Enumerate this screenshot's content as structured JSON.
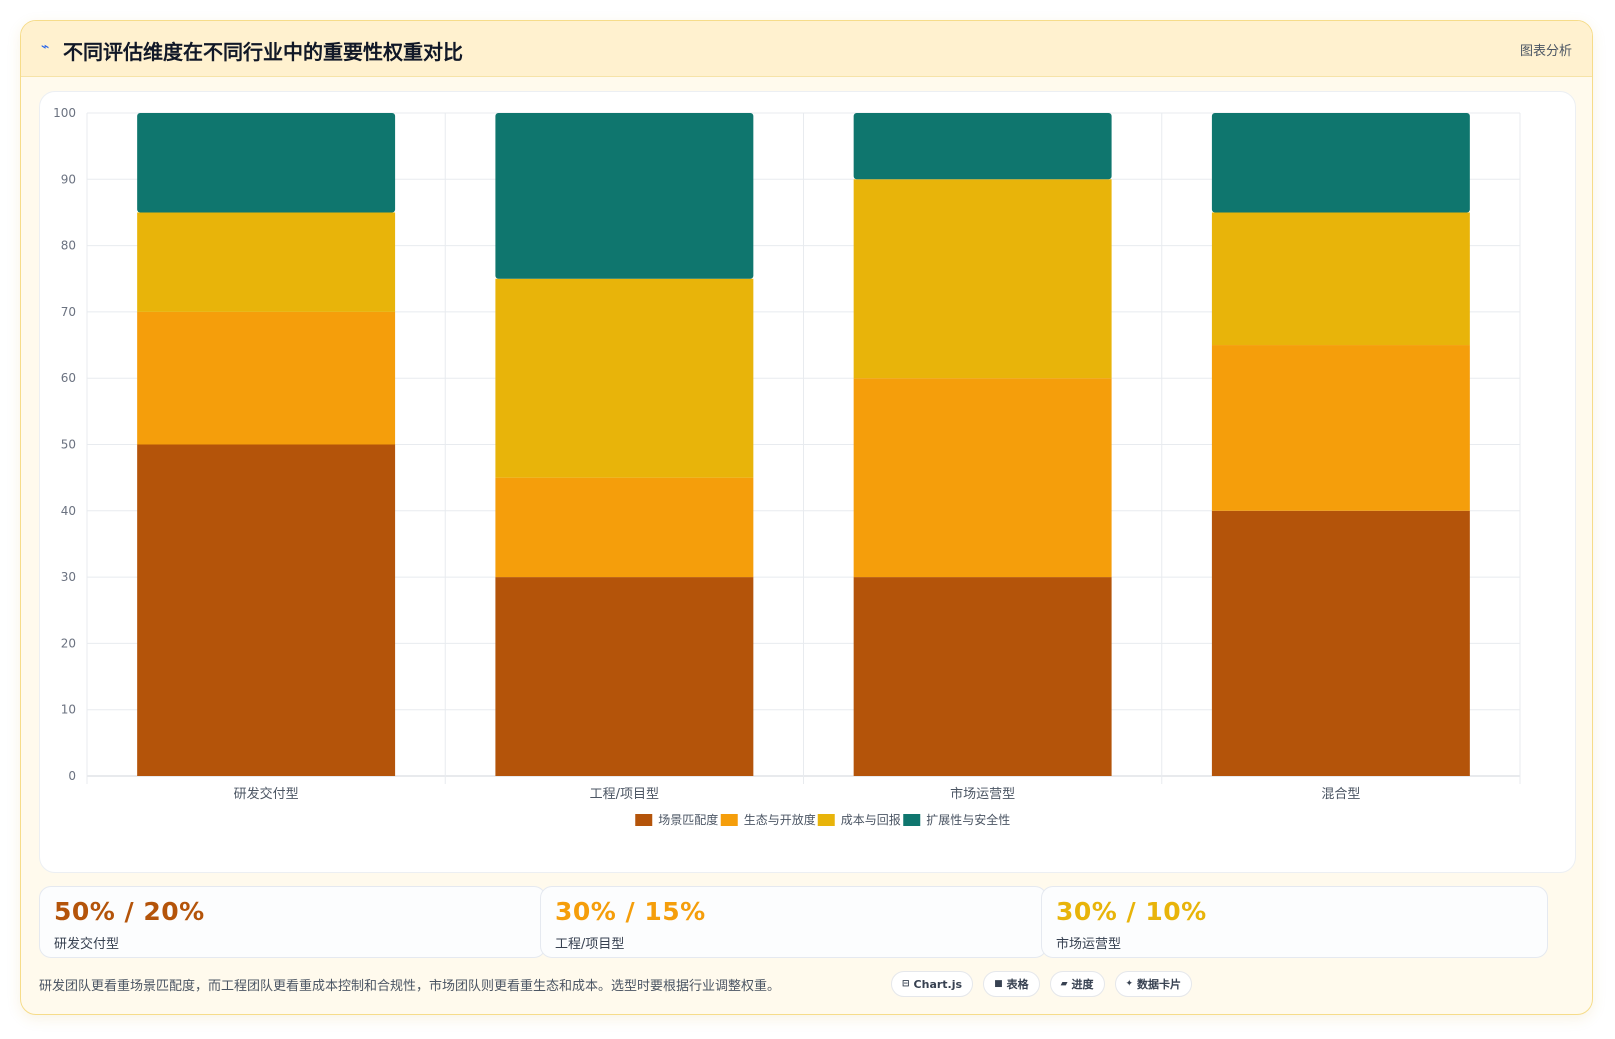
{
  "header": {
    "icon": "chart-line-icon",
    "title": "不同评估维度在不同行业中的重要性权重对比",
    "badge": "图表分析"
  },
  "chart_data": {
    "type": "bar",
    "stacked": true,
    "categories": [
      "研发交付型",
      "工程/项目型",
      "市场运营型",
      "混合型"
    ],
    "series": [
      {
        "name": "场景匹配度",
        "color": "#b4540a",
        "values": [
          50,
          30,
          30,
          40
        ]
      },
      {
        "name": "生态与开放度",
        "color": "#f59e0b",
        "values": [
          20,
          15,
          30,
          25
        ]
      },
      {
        "name": "成本与回报",
        "color": "#e8b40a",
        "values": [
          15,
          30,
          30,
          20
        ]
      },
      {
        "name": "扩展性与安全性",
        "color": "#0f766e",
        "values": [
          15,
          25,
          10,
          15
        ]
      }
    ],
    "ylim": [
      0,
      100
    ],
    "yticks": [
      0,
      10,
      20,
      30,
      40,
      50,
      60,
      70,
      80,
      90,
      100
    ],
    "grid": true,
    "legend": "bottom"
  },
  "stats": [
    {
      "value": "50% / 20%",
      "label": "研发交付型",
      "color": "#b4540a"
    },
    {
      "value": "30% / 15%",
      "label": "工程/项目型",
      "color": "#f59e0b"
    },
    {
      "value": "30% / 10%",
      "label": "市场运营型",
      "color": "#e8b40a"
    }
  ],
  "note": "研发团队更看重场景匹配度，而工程团队更看重成本控制和合规性，市场团队则更看重生态和成本。选型时要根据行业调整权重。",
  "tags": [
    {
      "icon": "chart-icon",
      "glyph": "⊟",
      "label": "Chart.js"
    },
    {
      "icon": "table-icon",
      "glyph": "■",
      "label": "表格"
    },
    {
      "icon": "progress-icon",
      "glyph": "▰",
      "label": "进度"
    },
    {
      "icon": "sparkle-icon",
      "glyph": "✦",
      "label": "数据卡片"
    }
  ]
}
